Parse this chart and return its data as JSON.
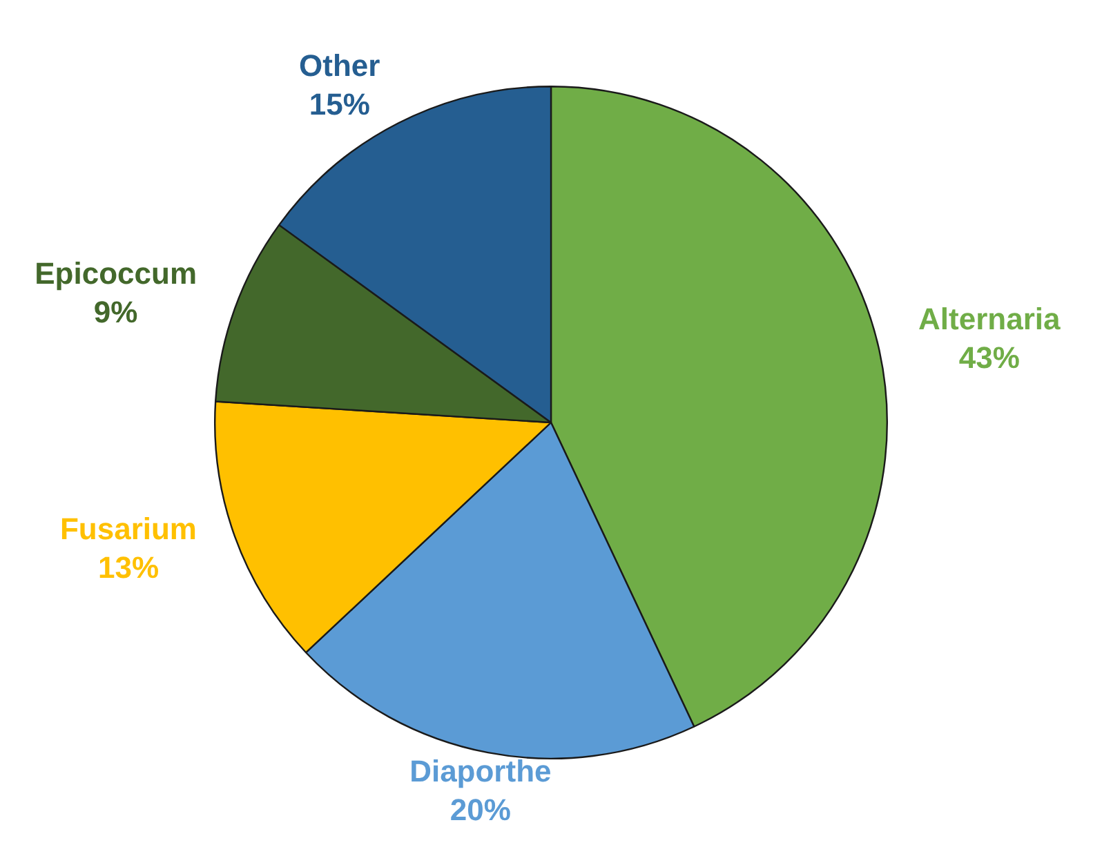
{
  "chart_data": {
    "type": "pie",
    "categories": [
      "Alternaria",
      "Diaporthe",
      "Fusarium",
      "Epicoccum",
      "Other"
    ],
    "values": [
      43,
      20,
      13,
      9,
      15
    ],
    "colors": [
      "#70ad47",
      "#5b9bd5",
      "#ffc000",
      "#43682b",
      "#255e91"
    ],
    "value_labels": [
      "43%",
      "20%",
      "13%",
      "9%",
      "15%"
    ],
    "legend": false
  }
}
